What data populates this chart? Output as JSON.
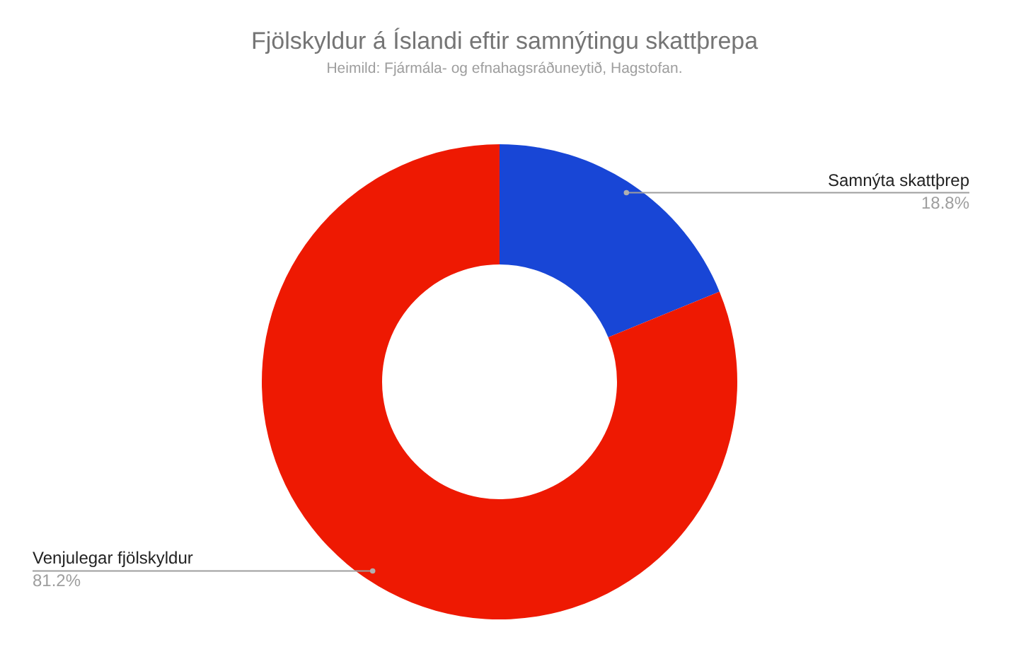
{
  "chart_data": {
    "type": "donut",
    "title": "Fjölskyldur á Íslandi eftir samnýtingu skattþrepa",
    "subtitle": "Heimild: Fjármála- og efnahagsráðuneytið, Hagstofan.",
    "categories": [
      "Samnýta skattþrep",
      "Venjulegar fjölskyldur"
    ],
    "values": [
      18.8,
      81.2
    ],
    "colors": [
      "#1846d6",
      "#ee1902"
    ],
    "value_labels": [
      "18.8%",
      "81.2%"
    ],
    "legend": false
  }
}
